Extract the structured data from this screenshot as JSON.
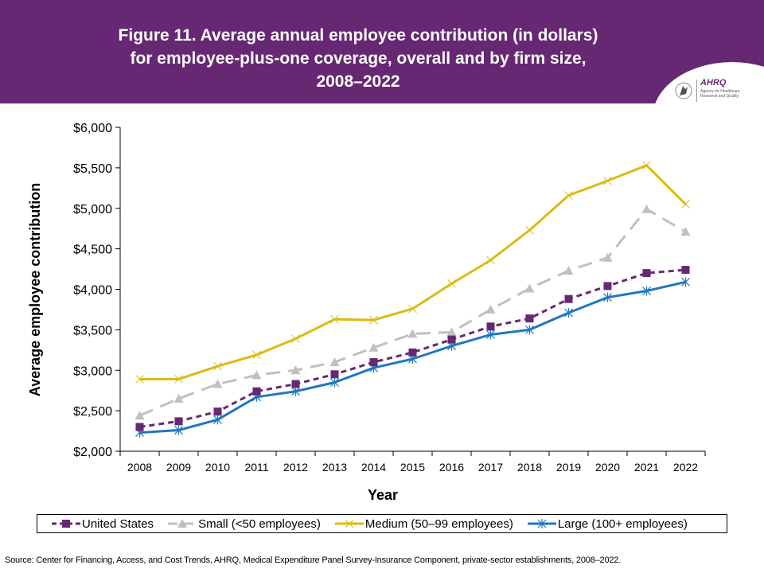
{
  "header": {
    "title_lines": [
      "Figure 11. Average annual employee contribution (in dollars)",
      "for employee-plus-one coverage, overall and by firm size,",
      "2008–2022"
    ],
    "logo": {
      "name": "AHRQ",
      "subtitle_line1": "Agency for Healthcare",
      "subtitle_line2": "Research and Quality"
    },
    "background_color": "#662873"
  },
  "chart_data": {
    "type": "line",
    "title": "Average annual employee contribution (in dollars) for employee-plus-one coverage, overall and by firm size, 2008–2022",
    "xlabel": "Year",
    "ylabel": "Average employee contribution",
    "x": [
      "2008",
      "2009",
      "2010",
      "2011",
      "2012",
      "2013",
      "2014",
      "2015",
      "2016",
      "2017",
      "2018",
      "2019",
      "2020",
      "2021",
      "2022"
    ],
    "ylim": [
      2000,
      6000
    ],
    "yticks": [
      2000,
      2500,
      3000,
      3500,
      4000,
      4500,
      5000,
      5500,
      6000
    ],
    "ytick_labels": [
      "$2,000",
      "$2,500",
      "$3,000",
      "$3,500",
      "$4,000",
      "$4,500",
      "$5,000",
      "$5,500",
      "$6,000"
    ],
    "grid": false,
    "legend_position": "bottom",
    "series": [
      {
        "name": "United States",
        "color": "#662873",
        "dash": "dashed",
        "marker": "square",
        "values": [
          2300,
          2370,
          2490,
          2740,
          2830,
          2950,
          3100,
          3220,
          3380,
          3540,
          3640,
          3880,
          4040,
          4200,
          4240
        ]
      },
      {
        "name": "Small (<50 employees)",
        "color": "#c0c0c0",
        "dash": "long-dashed",
        "marker": "triangle",
        "values": [
          2440,
          2650,
          2830,
          2940,
          3000,
          3100,
          3280,
          3450,
          3470,
          3750,
          4010,
          4230,
          4390,
          4990,
          4710
        ]
      },
      {
        "name": "Medium (50–99 employees)",
        "color": "#dcbb12",
        "dash": "solid",
        "marker": "x",
        "values": [
          2890,
          2890,
          3050,
          3190,
          3390,
          3630,
          3620,
          3760,
          4070,
          4360,
          4730,
          5160,
          5340,
          5530,
          5050
        ]
      },
      {
        "name": "Large (100+ employees)",
        "color": "#1f77bf",
        "dash": "solid",
        "marker": "star",
        "values": [
          2230,
          2260,
          2390,
          2670,
          2740,
          2850,
          3030,
          3140,
          3300,
          3440,
          3500,
          3710,
          3900,
          3980,
          4090
        ]
      }
    ]
  },
  "footer": {
    "source": "Source: Center for Financing, Access, and Cost Trends, AHRQ, Medical Expenditure Panel Survey-Insurance Component, private-sector establishments, 2008–2022."
  }
}
